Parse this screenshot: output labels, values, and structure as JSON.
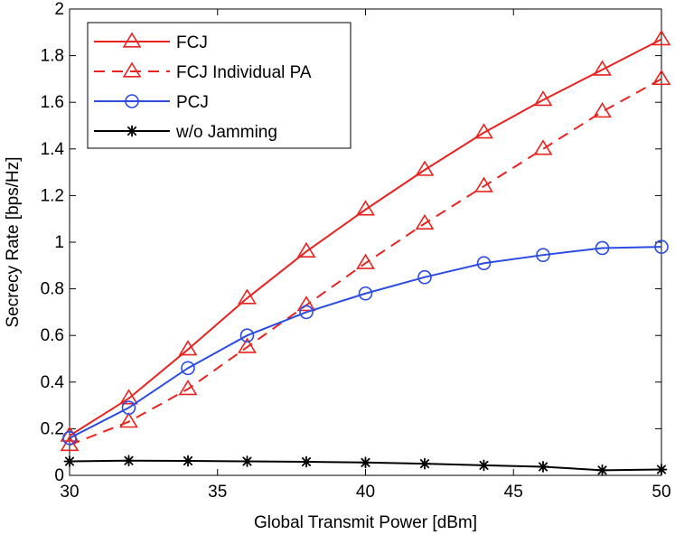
{
  "chart_data": {
    "type": "line",
    "title": "",
    "xlabel": "Global Transmit Power [dBm]",
    "ylabel": "Secrecy Rate [bps/Hz]",
    "xlim": [
      30,
      50
    ],
    "ylim": [
      0,
      2
    ],
    "xticks": [
      30,
      35,
      40,
      45,
      50
    ],
    "xtick_labels": [
      "30",
      "35",
      "40",
      "45",
      "50"
    ],
    "yticks": [
      0,
      0.2,
      0.4,
      0.6,
      0.8,
      1,
      1.2,
      1.4,
      1.6,
      1.8,
      2
    ],
    "ytick_labels": [
      "0",
      "0.2",
      "0.4",
      "0.6",
      "0.8",
      "1",
      "1.2",
      "1.4",
      "1.6",
      "1.8",
      "2"
    ],
    "grid": false,
    "legend_position": "top-left",
    "x": [
      30,
      32,
      34,
      36,
      38,
      40,
      42,
      44,
      46,
      48,
      50
    ],
    "series": [
      {
        "name": "FCJ",
        "color": "#e8231f",
        "dash": "solid",
        "marker": "triangle",
        "values": [
          0.17,
          0.33,
          0.54,
          0.76,
          0.96,
          1.14,
          1.31,
          1.47,
          1.61,
          1.74,
          1.87
        ]
      },
      {
        "name": "FCJ Individual PA",
        "color": "#e8231f",
        "dash": "dashed",
        "marker": "triangle",
        "values": [
          0.13,
          0.23,
          0.37,
          0.55,
          0.73,
          0.91,
          1.08,
          1.24,
          1.4,
          1.56,
          1.7
        ]
      },
      {
        "name": "PCJ",
        "color": "#2b4be3",
        "dash": "solid",
        "marker": "circle",
        "values": [
          0.16,
          0.29,
          0.46,
          0.6,
          0.7,
          0.78,
          0.85,
          0.91,
          0.945,
          0.975,
          0.98
        ]
      },
      {
        "name": "w/o Jamming",
        "color": "#000000",
        "dash": "solid",
        "marker": "star",
        "values": [
          0.06,
          0.063,
          0.062,
          0.06,
          0.058,
          0.055,
          0.05,
          0.043,
          0.037,
          0.022,
          0.025
        ]
      }
    ]
  }
}
